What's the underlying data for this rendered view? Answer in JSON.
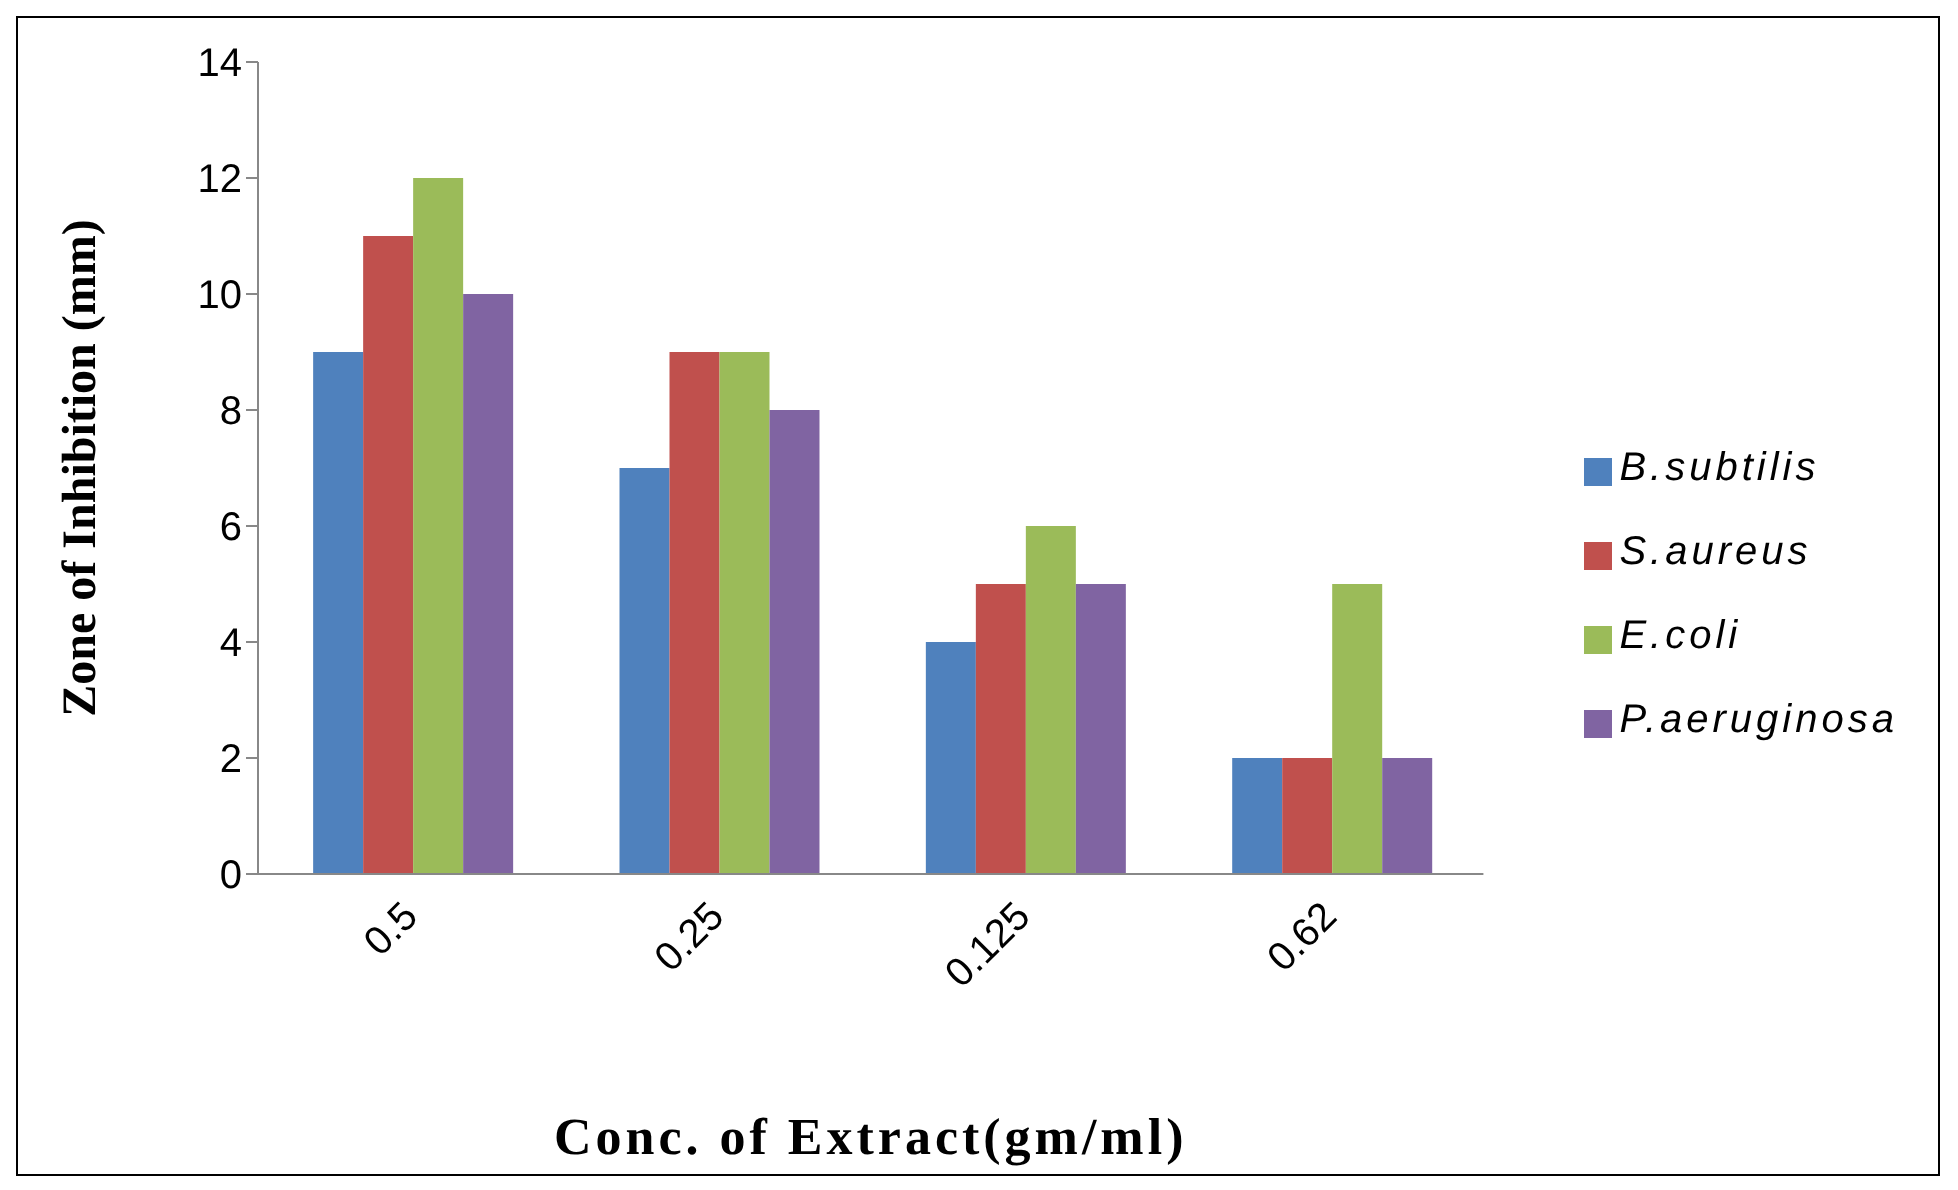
{
  "chart_data": {
    "type": "bar",
    "xlabel": "Conc. of Extract(gm/ml)",
    "ylabel": "Zone of Inhibition (mm)",
    "categories": [
      "0.5",
      "0.25",
      "0.125",
      "0.62"
    ],
    "series": [
      {
        "name": "B.subtilis",
        "color": "#4f81bd",
        "values": [
          9,
          7,
          4,
          2
        ]
      },
      {
        "name": "S.aureus",
        "color": "#c0504d",
        "values": [
          11,
          9,
          5,
          2
        ]
      },
      {
        "name": "E.coli",
        "color": "#9bbb59",
        "values": [
          12,
          9,
          6,
          5
        ]
      },
      {
        "name": "P.aeruginosa",
        "color": "#8064a2",
        "values": [
          10,
          8,
          5,
          2
        ]
      }
    ],
    "ylim": [
      0,
      14
    ],
    "yticks": [
      0,
      2,
      4,
      6,
      8,
      10,
      12,
      14
    ],
    "grid": false,
    "legend": "right"
  }
}
